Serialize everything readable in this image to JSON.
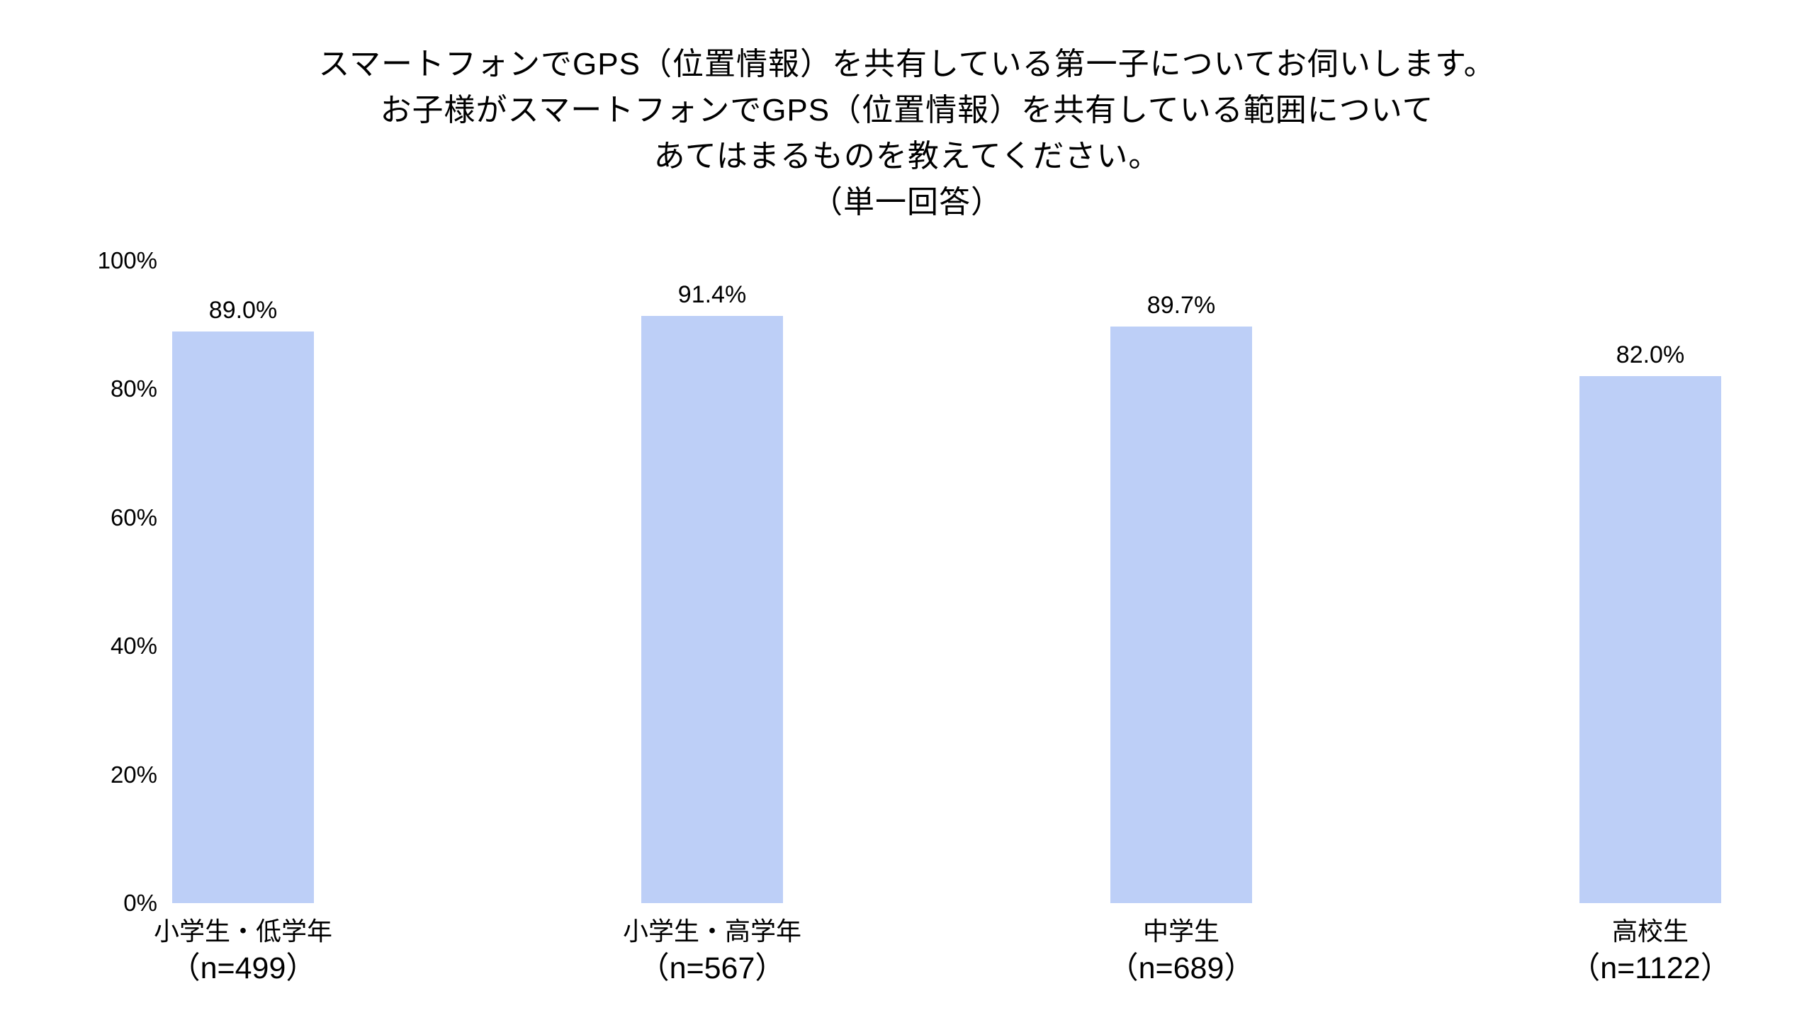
{
  "title": {
    "lines": [
      "スマートフォンでGPS（位置情報）を共有している第一子についてお伺いします。",
      "お子様がスマートフォンでGPS（位置情報）を共有している範囲について",
      "あてはまるものを教えてください。",
      "（単一回答）"
    ]
  },
  "chart_data": {
    "type": "bar",
    "title": "スマートフォンでGPS（位置情報）を共有している第一子についてお伺いします。お子様がスマートフォンでGPS（位置情報）を共有している範囲についてあてはまるものを教えてください。（単一回答）",
    "categories": [
      "小学生・低学年",
      "小学生・高学年",
      "中学生",
      "高校生"
    ],
    "sample_labels": [
      "（n=499）",
      "（n=567）",
      "（n=689）",
      "（n=1122）"
    ],
    "values": [
      89.0,
      91.4,
      89.7,
      82.0
    ],
    "value_labels": [
      "89.0%",
      "91.4%",
      "89.7%",
      "82.0%"
    ],
    "ytick_labels": [
      "100%",
      "80%",
      "60%",
      "40%",
      "20%",
      "0%"
    ],
    "ytick_values": [
      100,
      80,
      60,
      40,
      20,
      0
    ],
    "ylim": [
      0,
      100
    ],
    "xlabel": "",
    "ylabel": "",
    "grid": false,
    "legend": "none",
    "bar_color": "#BDCFF7",
    "text_color": "#000000",
    "background_color": "#FFFFFF"
  }
}
